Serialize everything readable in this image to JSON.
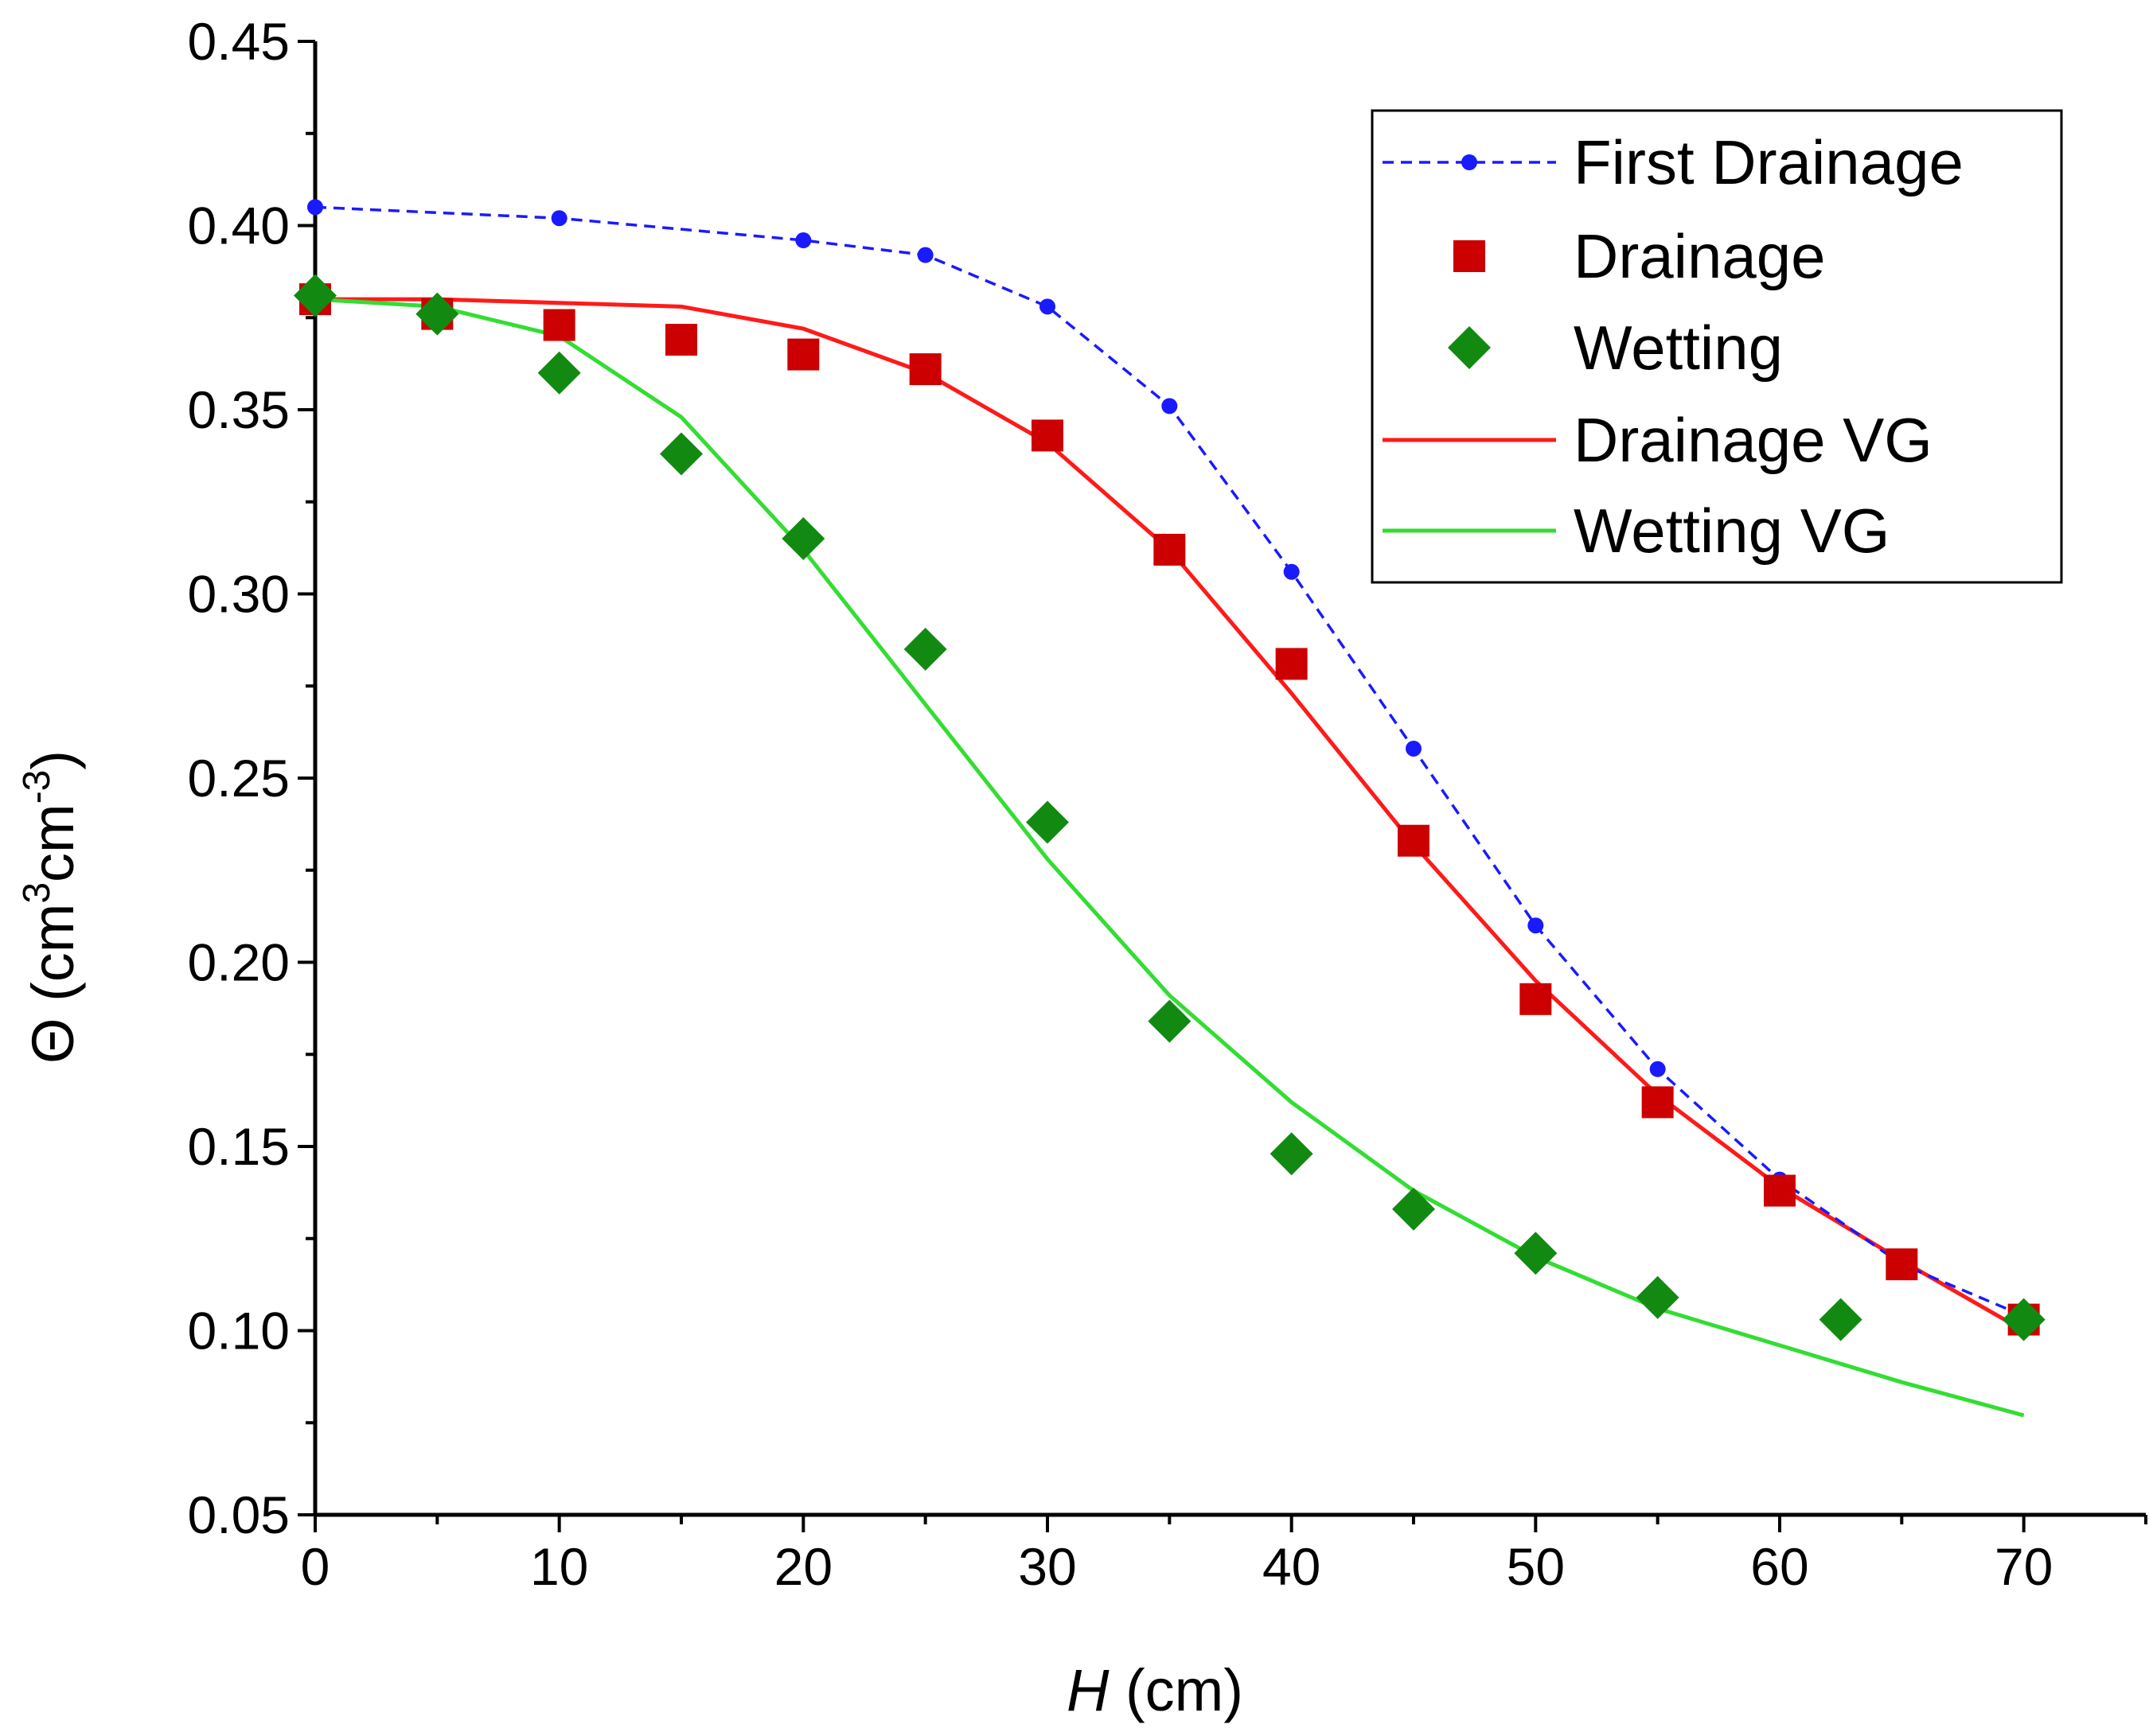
{
  "chart_data": {
    "type": "line",
    "xlabel_var": "H",
    "xlabel_unit": " (cm)",
    "ylabel_main": "Θ (cm",
    "ylabel_sup1": "3",
    "ylabel_mid": "cm",
    "ylabel_sup2": "-3",
    "ylabel_end": ")",
    "xlim": [
      0,
      75
    ],
    "ylim": [
      0.05,
      0.45
    ],
    "x_ticks": [
      0,
      10,
      20,
      30,
      40,
      50,
      60,
      70
    ],
    "x_tick_labels": [
      "0",
      "10",
      "20",
      "30",
      "40",
      "50",
      "60",
      "70"
    ],
    "y_ticks": [
      0.05,
      0.1,
      0.15,
      0.2,
      0.25,
      0.3,
      0.35,
      0.4,
      0.45
    ],
    "y_tick_labels": [
      "0.05",
      "0.10",
      "0.15",
      "0.20",
      "0.25",
      "0.30",
      "0.35",
      "0.40",
      "0.45"
    ],
    "legend_position": "top-right",
    "series": [
      {
        "name": "First Drainage",
        "style": "dashed-line-circle",
        "color": "#1a1aff",
        "x": [
          0,
          10,
          20,
          25,
          30,
          35,
          40,
          45,
          50,
          55,
          60,
          65,
          70
        ],
        "y": [
          0.405,
          0.402,
          0.396,
          0.392,
          0.378,
          0.351,
          0.306,
          0.258,
          0.21,
          0.171,
          0.141,
          0.118,
          0.104
        ]
      },
      {
        "name": "Drainage",
        "style": "square",
        "color": "#cc0000",
        "x": [
          0,
          5,
          10,
          15,
          20,
          25,
          30,
          35,
          40,
          45,
          50,
          55,
          60,
          65,
          70
        ],
        "y": [
          0.38,
          0.376,
          0.373,
          0.369,
          0.365,
          0.361,
          0.343,
          0.312,
          0.281,
          0.233,
          0.19,
          0.162,
          0.138,
          0.118,
          0.103
        ]
      },
      {
        "name": "Wetting",
        "style": "diamond",
        "color": "#128a12",
        "x": [
          0,
          5,
          10,
          15,
          20,
          25,
          30,
          35,
          40,
          45,
          50,
          55,
          62.5,
          70
        ],
        "y": [
          0.381,
          0.376,
          0.36,
          0.338,
          0.315,
          0.285,
          0.238,
          0.184,
          0.148,
          0.133,
          0.121,
          0.109,
          0.103,
          0.103
        ]
      },
      {
        "name": "Drainage VG",
        "style": "solid-line",
        "color": "#ff1a1a",
        "x": [
          0,
          5,
          10,
          15,
          20,
          25,
          30,
          35,
          40,
          45,
          50,
          55,
          60,
          65,
          70
        ],
        "y": [
          0.38,
          0.38,
          0.379,
          0.378,
          0.372,
          0.36,
          0.341,
          0.312,
          0.273,
          0.232,
          0.195,
          0.164,
          0.139,
          0.119,
          0.1
        ]
      },
      {
        "name": "Wetting VG",
        "style": "solid-line",
        "color": "#33dd33",
        "x": [
          0,
          5,
          10,
          15,
          20,
          25,
          30,
          35,
          40,
          45,
          50,
          55,
          60,
          65,
          70
        ],
        "y": [
          0.38,
          0.378,
          0.37,
          0.348,
          0.312,
          0.27,
          0.228,
          0.191,
          0.162,
          0.138,
          0.12,
          0.106,
          0.096,
          0.086,
          0.077
        ]
      }
    ]
  }
}
